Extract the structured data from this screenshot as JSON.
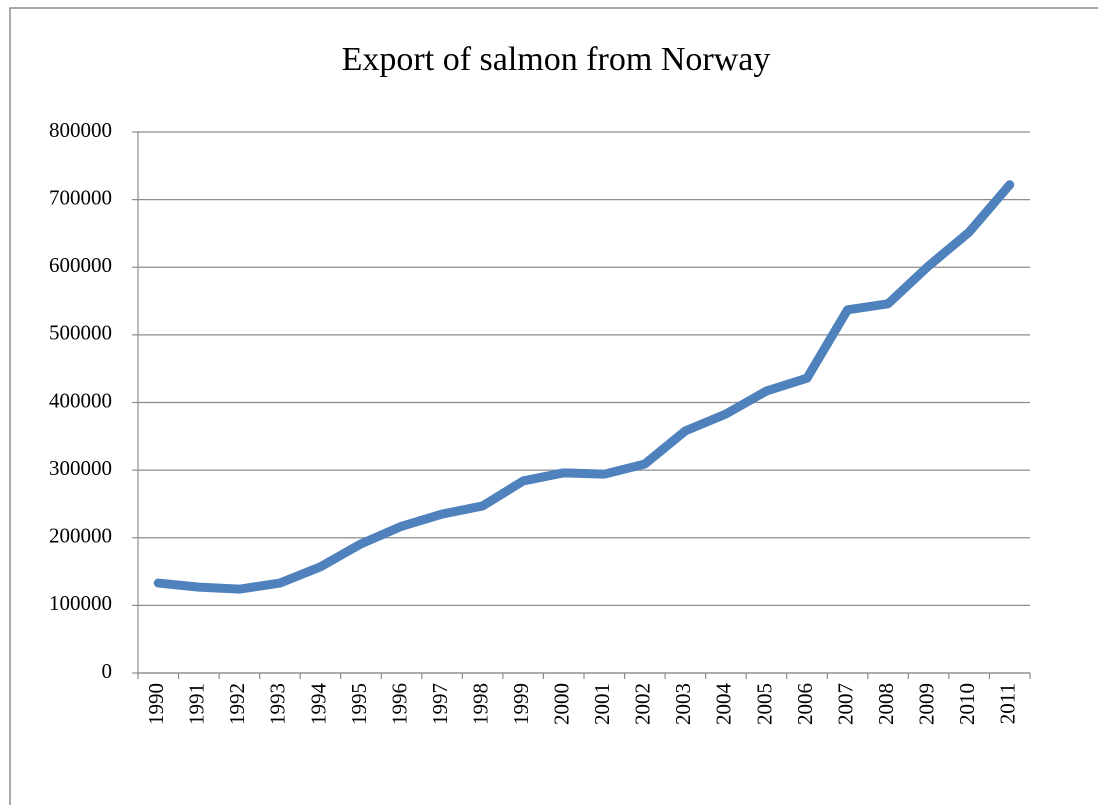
{
  "chart_data": {
    "type": "line",
    "title": "Export of salmon from Norway",
    "categories": [
      "1990",
      "1991",
      "1992",
      "1993",
      "1994",
      "1995",
      "1996",
      "1997",
      "1998",
      "1999",
      "2000",
      "2001",
      "2002",
      "2003",
      "2004",
      "2005",
      "2006",
      "2007",
      "2008",
      "2009",
      "2010",
      "2011"
    ],
    "values": [
      133000,
      127000,
      124000,
      133000,
      157000,
      191000,
      217000,
      235000,
      247000,
      284000,
      296000,
      294000,
      309000,
      358000,
      383000,
      417000,
      436000,
      537000,
      546000,
      602000,
      652000,
      722000
    ],
    "color": "#4f81bd",
    "ylim": [
      0,
      800000
    ],
    "yticks": [
      0,
      100000,
      200000,
      300000,
      400000,
      500000,
      600000,
      700000,
      800000
    ],
    "grid": true
  }
}
